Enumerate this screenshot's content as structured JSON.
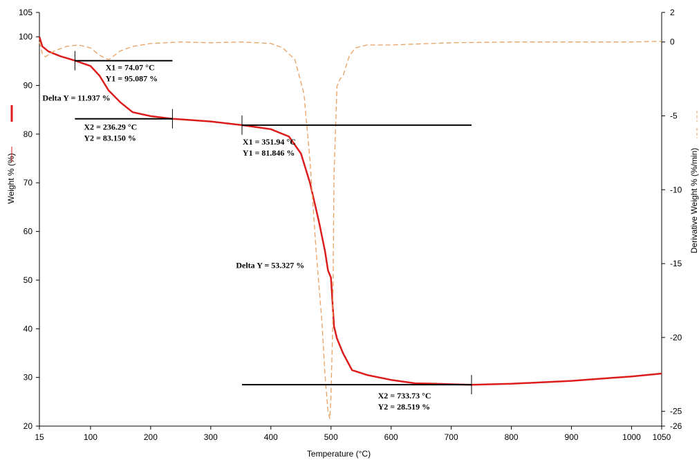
{
  "chart_data": {
    "type": "line",
    "xlabel": "Temperature (°C)",
    "ylabel_left": "Weight % (%)",
    "ylabel_right": "Derivative Weight % (%/min)",
    "xlim": [
      15,
      1050
    ],
    "ylim_left": [
      20,
      105
    ],
    "ylim_right": [
      -26,
      2
    ],
    "x_ticks": [
      15,
      100,
      200,
      300,
      400,
      500,
      600,
      700,
      800,
      900,
      1000,
      1050
    ],
    "y_left_ticks": [
      20,
      30,
      40,
      50,
      60,
      70,
      80,
      90,
      100,
      105
    ],
    "y_right_ticks": [
      2,
      0,
      -5,
      -10,
      -15,
      -20,
      -25,
      -26
    ],
    "grid": false,
    "colors": {
      "weight": "#dd1c1c",
      "derivative": "#e8a060",
      "marker": "#000000"
    },
    "series": [
      {
        "axis": "left",
        "style": "solid",
        "x": [
          15,
          20,
          30,
          50,
          74,
          100,
          115,
          130,
          150,
          170,
          200,
          236,
          300,
          352,
          400,
          430,
          450,
          465,
          480,
          490,
          495,
          500,
          505,
          510,
          520,
          535,
          560,
          600,
          640,
          675,
          700,
          734,
          800,
          900,
          1000,
          1050
        ],
        "values": [
          100,
          98,
          97,
          96,
          95.1,
          94.0,
          92.0,
          89.0,
          86.5,
          84.5,
          83.7,
          83.15,
          82.6,
          81.85,
          81.0,
          79.5,
          76.0,
          70.0,
          62.0,
          56.0,
          52.0,
          50.5,
          40.5,
          38.0,
          35.0,
          31.5,
          30.5,
          29.5,
          28.8,
          28.7,
          28.6,
          28.5,
          28.7,
          29.3,
          30.2,
          30.8
        ]
      },
      {
        "axis": "right",
        "style": "dashed",
        "x": [
          15,
          20,
          25,
          40,
          60,
          80,
          100,
          115,
          130,
          140,
          150,
          170,
          200,
          250,
          300,
          350,
          400,
          420,
          440,
          455,
          465,
          475,
          485,
          490,
          495,
          498,
          500,
          503,
          505,
          510,
          515,
          520,
          530,
          540,
          560,
          600,
          700,
          800,
          900,
          1000,
          1050
        ],
        "values": [
          0,
          -0.8,
          -1.0,
          -0.6,
          -0.3,
          -0.2,
          -0.4,
          -0.9,
          -1.2,
          -0.9,
          -0.6,
          -0.3,
          -0.1,
          0.0,
          -0.05,
          0.0,
          -0.1,
          -0.4,
          -1.2,
          -3.5,
          -8.0,
          -14.0,
          -19.0,
          -22.5,
          -25.0,
          -25.5,
          -24.0,
          -19.0,
          -9.0,
          -3.0,
          -2.5,
          -2.3,
          -1.0,
          -0.4,
          -0.2,
          -0.2,
          -0.05,
          0.0,
          0.0,
          0.0,
          0.05
        ]
      }
    ],
    "annotations": {
      "step1": {
        "x1": "X1 = 74.07 °C",
        "y1": "Y1 = 95.087 %",
        "x2": "X2 = 236.29 °C",
        "y2": "Y2 = 83.150 %",
        "delta": "Delta Y = 11.937 %",
        "x1_val": 74.07,
        "y1_val": 95.087,
        "x2_val": 236.29,
        "y2_val": 83.15
      },
      "step2": {
        "x1": "X1 = 351.94 °C",
        "y1": "Y1 = 81.846 %",
        "x2": "X2 = 733.73 °C",
        "y2": "Y2 = 28.519 %",
        "delta": "Delta Y = 53.327 %",
        "x1_val": 351.94,
        "y1_val": 81.846,
        "x2_val": 733.73,
        "y2_val": 28.519
      }
    }
  }
}
